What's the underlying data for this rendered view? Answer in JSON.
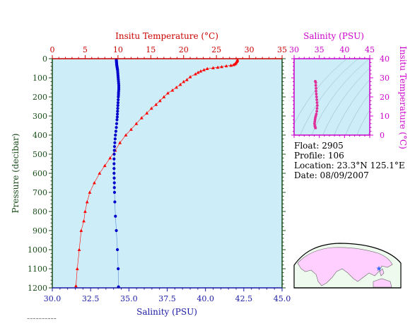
{
  "colors": {
    "temperature": "#cc0000",
    "salinity_bottom": "#1a1aa6",
    "salinity_top": "#cc00cc",
    "pressure_axis": "#1a4d1a",
    "plot_bg": "#cdeef8",
    "temp_points": "#ff0000",
    "sal_points": "#0000cc",
    "inset_points": "#e0309a",
    "land": "#ffd0ff",
    "ocean": "#eefaee",
    "float_marker": "#3366ff"
  },
  "info": {
    "float_line": "Float:  2905",
    "profile_line": "Profile:  106",
    "location_line": "Location:  23.3°N  125.1°E",
    "date_line": "Date:  08/09/2007"
  },
  "footnote": "~~~~~~~~~~",
  "chart_data": [
    {
      "type": "scatter",
      "title": "",
      "y_axis": {
        "label": "Pressure (decibar)",
        "lim": [
          1200,
          0
        ],
        "ticks": [
          0,
          100,
          200,
          300,
          400,
          500,
          600,
          700,
          800,
          900,
          1000,
          1100,
          1200
        ]
      },
      "x_top": {
        "label": "Insitu Temperature (°C)",
        "lim": [
          0,
          35
        ],
        "ticks": [
          0,
          5,
          10,
          15,
          20,
          25,
          30,
          35
        ]
      },
      "x_bottom": {
        "label": "Salinity (PSU)",
        "lim": [
          30.0,
          45.0
        ],
        "ticks": [
          "30.0",
          "32.5",
          "35.0",
          "37.5",
          "40.0",
          "42.5",
          "45.0"
        ]
      },
      "series": [
        {
          "axis": "top",
          "marker": "triangle",
          "points": [
            [
              28.2,
              5
            ],
            [
              28.2,
              10
            ],
            [
              28.1,
              15
            ],
            [
              28.0,
              20
            ],
            [
              27.9,
              25
            ],
            [
              27.8,
              28
            ],
            [
              27.6,
              32
            ],
            [
              27.2,
              35
            ],
            [
              26.5,
              38
            ],
            [
              25.8,
              42
            ],
            [
              25.2,
              45
            ],
            [
              24.5,
              48
            ],
            [
              23.6,
              52
            ],
            [
              23.1,
              58
            ],
            [
              22.6,
              65
            ],
            [
              22.2,
              72
            ],
            [
              21.8,
              80
            ],
            [
              21.0,
              95
            ],
            [
              20.5,
              110
            ],
            [
              20.0,
              120
            ],
            [
              19.5,
              135
            ],
            [
              18.9,
              150
            ],
            [
              18.3,
              165
            ],
            [
              17.6,
              180
            ],
            [
              17.0,
              200
            ],
            [
              16.4,
              220
            ],
            [
              15.8,
              240
            ],
            [
              15.1,
              260
            ],
            [
              14.4,
              285
            ],
            [
              13.6,
              310
            ],
            [
              12.8,
              340
            ],
            [
              12.0,
              370
            ],
            [
              11.2,
              400
            ],
            [
              10.3,
              440
            ],
            [
              9.6,
              480
            ],
            [
              8.8,
              520
            ],
            [
              8.0,
              560
            ],
            [
              7.2,
              600
            ],
            [
              6.4,
              650
            ],
            [
              5.7,
              700
            ],
            [
              5.3,
              750
            ],
            [
              5.0,
              800
            ],
            [
              4.8,
              850
            ],
            [
              4.4,
              900
            ],
            [
              4.1,
              1000
            ],
            [
              3.8,
              1100
            ],
            [
              3.6,
              1190
            ]
          ]
        },
        {
          "axis": "bottom",
          "marker": "dot",
          "points": [
            [
              34.18,
              5
            ],
            [
              34.18,
              10
            ],
            [
              34.19,
              15
            ],
            [
              34.19,
              20
            ],
            [
              34.2,
              25
            ],
            [
              34.2,
              30
            ],
            [
              34.21,
              35
            ],
            [
              34.22,
              40
            ],
            [
              34.23,
              45
            ],
            [
              34.24,
              50
            ],
            [
              34.25,
              55
            ],
            [
              34.26,
              60
            ],
            [
              34.27,
              70
            ],
            [
              34.28,
              80
            ],
            [
              34.29,
              90
            ],
            [
              34.3,
              100
            ],
            [
              34.31,
              110
            ],
            [
              34.32,
              120
            ],
            [
              34.33,
              130
            ],
            [
              34.34,
              140
            ],
            [
              34.34,
              150
            ],
            [
              34.34,
              160
            ],
            [
              34.33,
              170
            ],
            [
              34.32,
              180
            ],
            [
              34.32,
              190
            ],
            [
              34.31,
              200
            ],
            [
              34.3,
              215
            ],
            [
              34.29,
              230
            ],
            [
              34.28,
              245
            ],
            [
              34.27,
              260
            ],
            [
              34.26,
              275
            ],
            [
              34.25,
              290
            ],
            [
              34.24,
              305
            ],
            [
              34.22,
              320
            ],
            [
              34.2,
              340
            ],
            [
              34.18,
              360
            ],
            [
              34.15,
              380
            ],
            [
              34.12,
              400
            ],
            [
              34.1,
              420
            ],
            [
              34.08,
              440
            ],
            [
              34.06,
              460
            ],
            [
              34.05,
              480
            ],
            [
              34.04,
              500
            ],
            [
              34.03,
              525
            ],
            [
              34.03,
              550
            ],
            [
              34.03,
              575
            ],
            [
              34.03,
              600
            ],
            [
              34.04,
              625
            ],
            [
              34.05,
              650
            ],
            [
              34.05,
              675
            ],
            [
              34.06,
              700
            ],
            [
              34.08,
              750
            ],
            [
              34.12,
              825
            ],
            [
              34.18,
              900
            ],
            [
              34.25,
              1000
            ],
            [
              34.3,
              1100
            ],
            [
              34.32,
              1195
            ]
          ]
        }
      ]
    },
    {
      "type": "scatter",
      "title": "",
      "x_top": {
        "label": "Salinity (PSU)",
        "lim": [
          30,
          45
        ],
        "ticks": [
          30,
          35,
          40,
          45
        ]
      },
      "y_right": {
        "label": "Insitu Temperature (°C)",
        "lim": [
          0,
          40
        ],
        "ticks": [
          0,
          10,
          20,
          30,
          40
        ]
      },
      "series": [
        {
          "marker": "dot",
          "points": [
            [
              34.2,
              28.2
            ],
            [
              34.3,
              27.5
            ],
            [
              34.3,
              26.0
            ],
            [
              34.35,
              24.5
            ],
            [
              34.35,
              23.0
            ],
            [
              34.4,
              21.5
            ],
            [
              34.45,
              20.0
            ],
            [
              34.5,
              18.5
            ],
            [
              34.55,
              17.0
            ],
            [
              34.6,
              15.5
            ],
            [
              34.55,
              14.0
            ],
            [
              34.5,
              12.5
            ],
            [
              34.4,
              11.0
            ],
            [
              34.3,
              10.0
            ],
            [
              34.2,
              9.0
            ],
            [
              34.15,
              8.0
            ],
            [
              34.1,
              7.0
            ],
            [
              34.05,
              6.0
            ],
            [
              34.1,
              5.0
            ],
            [
              34.15,
              4.5
            ],
            [
              34.2,
              4.0
            ],
            [
              34.25,
              3.7
            ]
          ]
        }
      ]
    }
  ]
}
